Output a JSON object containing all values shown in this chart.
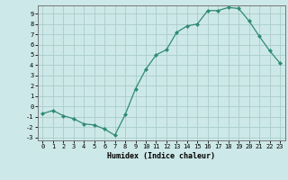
{
  "x": [
    0,
    1,
    2,
    3,
    4,
    5,
    6,
    7,
    8,
    9,
    10,
    11,
    12,
    13,
    14,
    15,
    16,
    17,
    18,
    19,
    20,
    21,
    22,
    23
  ],
  "y": [
    -0.7,
    -0.4,
    -0.9,
    -1.2,
    -1.7,
    -1.8,
    -2.2,
    -2.8,
    -0.8,
    1.7,
    3.6,
    5.0,
    5.5,
    7.2,
    7.8,
    8.0,
    9.3,
    9.3,
    9.6,
    9.5,
    8.3,
    6.8,
    5.4,
    4.2
  ],
  "xlabel": "Humidex (Indice chaleur)",
  "line_color": "#2e8b75",
  "marker_color": "#2e8b75",
  "bg_color": "#cde8e8",
  "grid_color": "#aacccc",
  "ylim": [
    -3.3,
    9.8
  ],
  "xlim": [
    -0.5,
    23.5
  ],
  "yticks": [
    -3,
    -2,
    -1,
    0,
    1,
    2,
    3,
    4,
    5,
    6,
    7,
    8,
    9
  ],
  "xticks": [
    0,
    1,
    2,
    3,
    4,
    5,
    6,
    7,
    8,
    9,
    10,
    11,
    12,
    13,
    14,
    15,
    16,
    17,
    18,
    19,
    20,
    21,
    22,
    23
  ]
}
